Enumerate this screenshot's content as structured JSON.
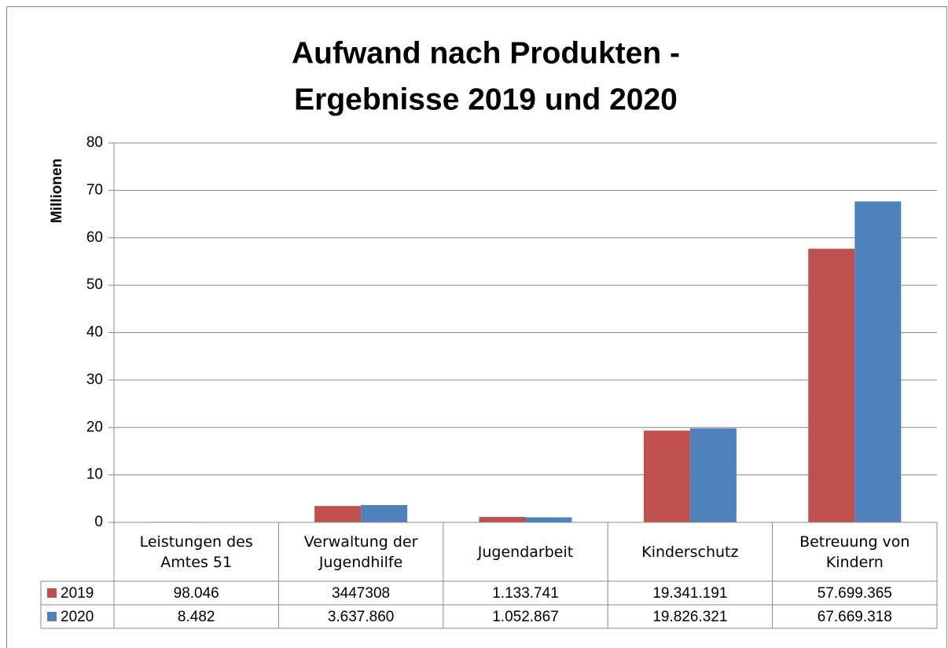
{
  "chart_data": {
    "type": "bar",
    "title": [
      "Aufwand nach Produkten -",
      "Ergebnisse 2019 und 2020"
    ],
    "y_label": "Millionen",
    "categories": [
      "Leistungen des Amtes 51",
      "Verwaltung der Jugendhilfe",
      "Jugendarbeit",
      "Kinderschutz",
      "Betreuung von Kindern"
    ],
    "series": [
      {
        "name": "2019",
        "color": "#c0504d",
        "values": [
          0.098046,
          3.447308,
          1.133741,
          19.341191,
          57.699365
        ],
        "value_labels": [
          "98.046",
          "3447308",
          "1.133.741",
          "19.341.191",
          "57.699.365"
        ]
      },
      {
        "name": "2020",
        "color": "#4f81bd",
        "values": [
          0.008482,
          3.63786,
          1.052867,
          19.826321,
          67.669318
        ],
        "value_labels": [
          "8.482",
          "3.637.860",
          "1.052.867",
          "19.826.321",
          "67.669.318"
        ]
      }
    ],
    "ylim": [
      0,
      80
    ],
    "yticks": [
      0,
      10,
      20,
      30,
      40,
      50,
      60,
      70,
      80
    ],
    "grid": true
  }
}
